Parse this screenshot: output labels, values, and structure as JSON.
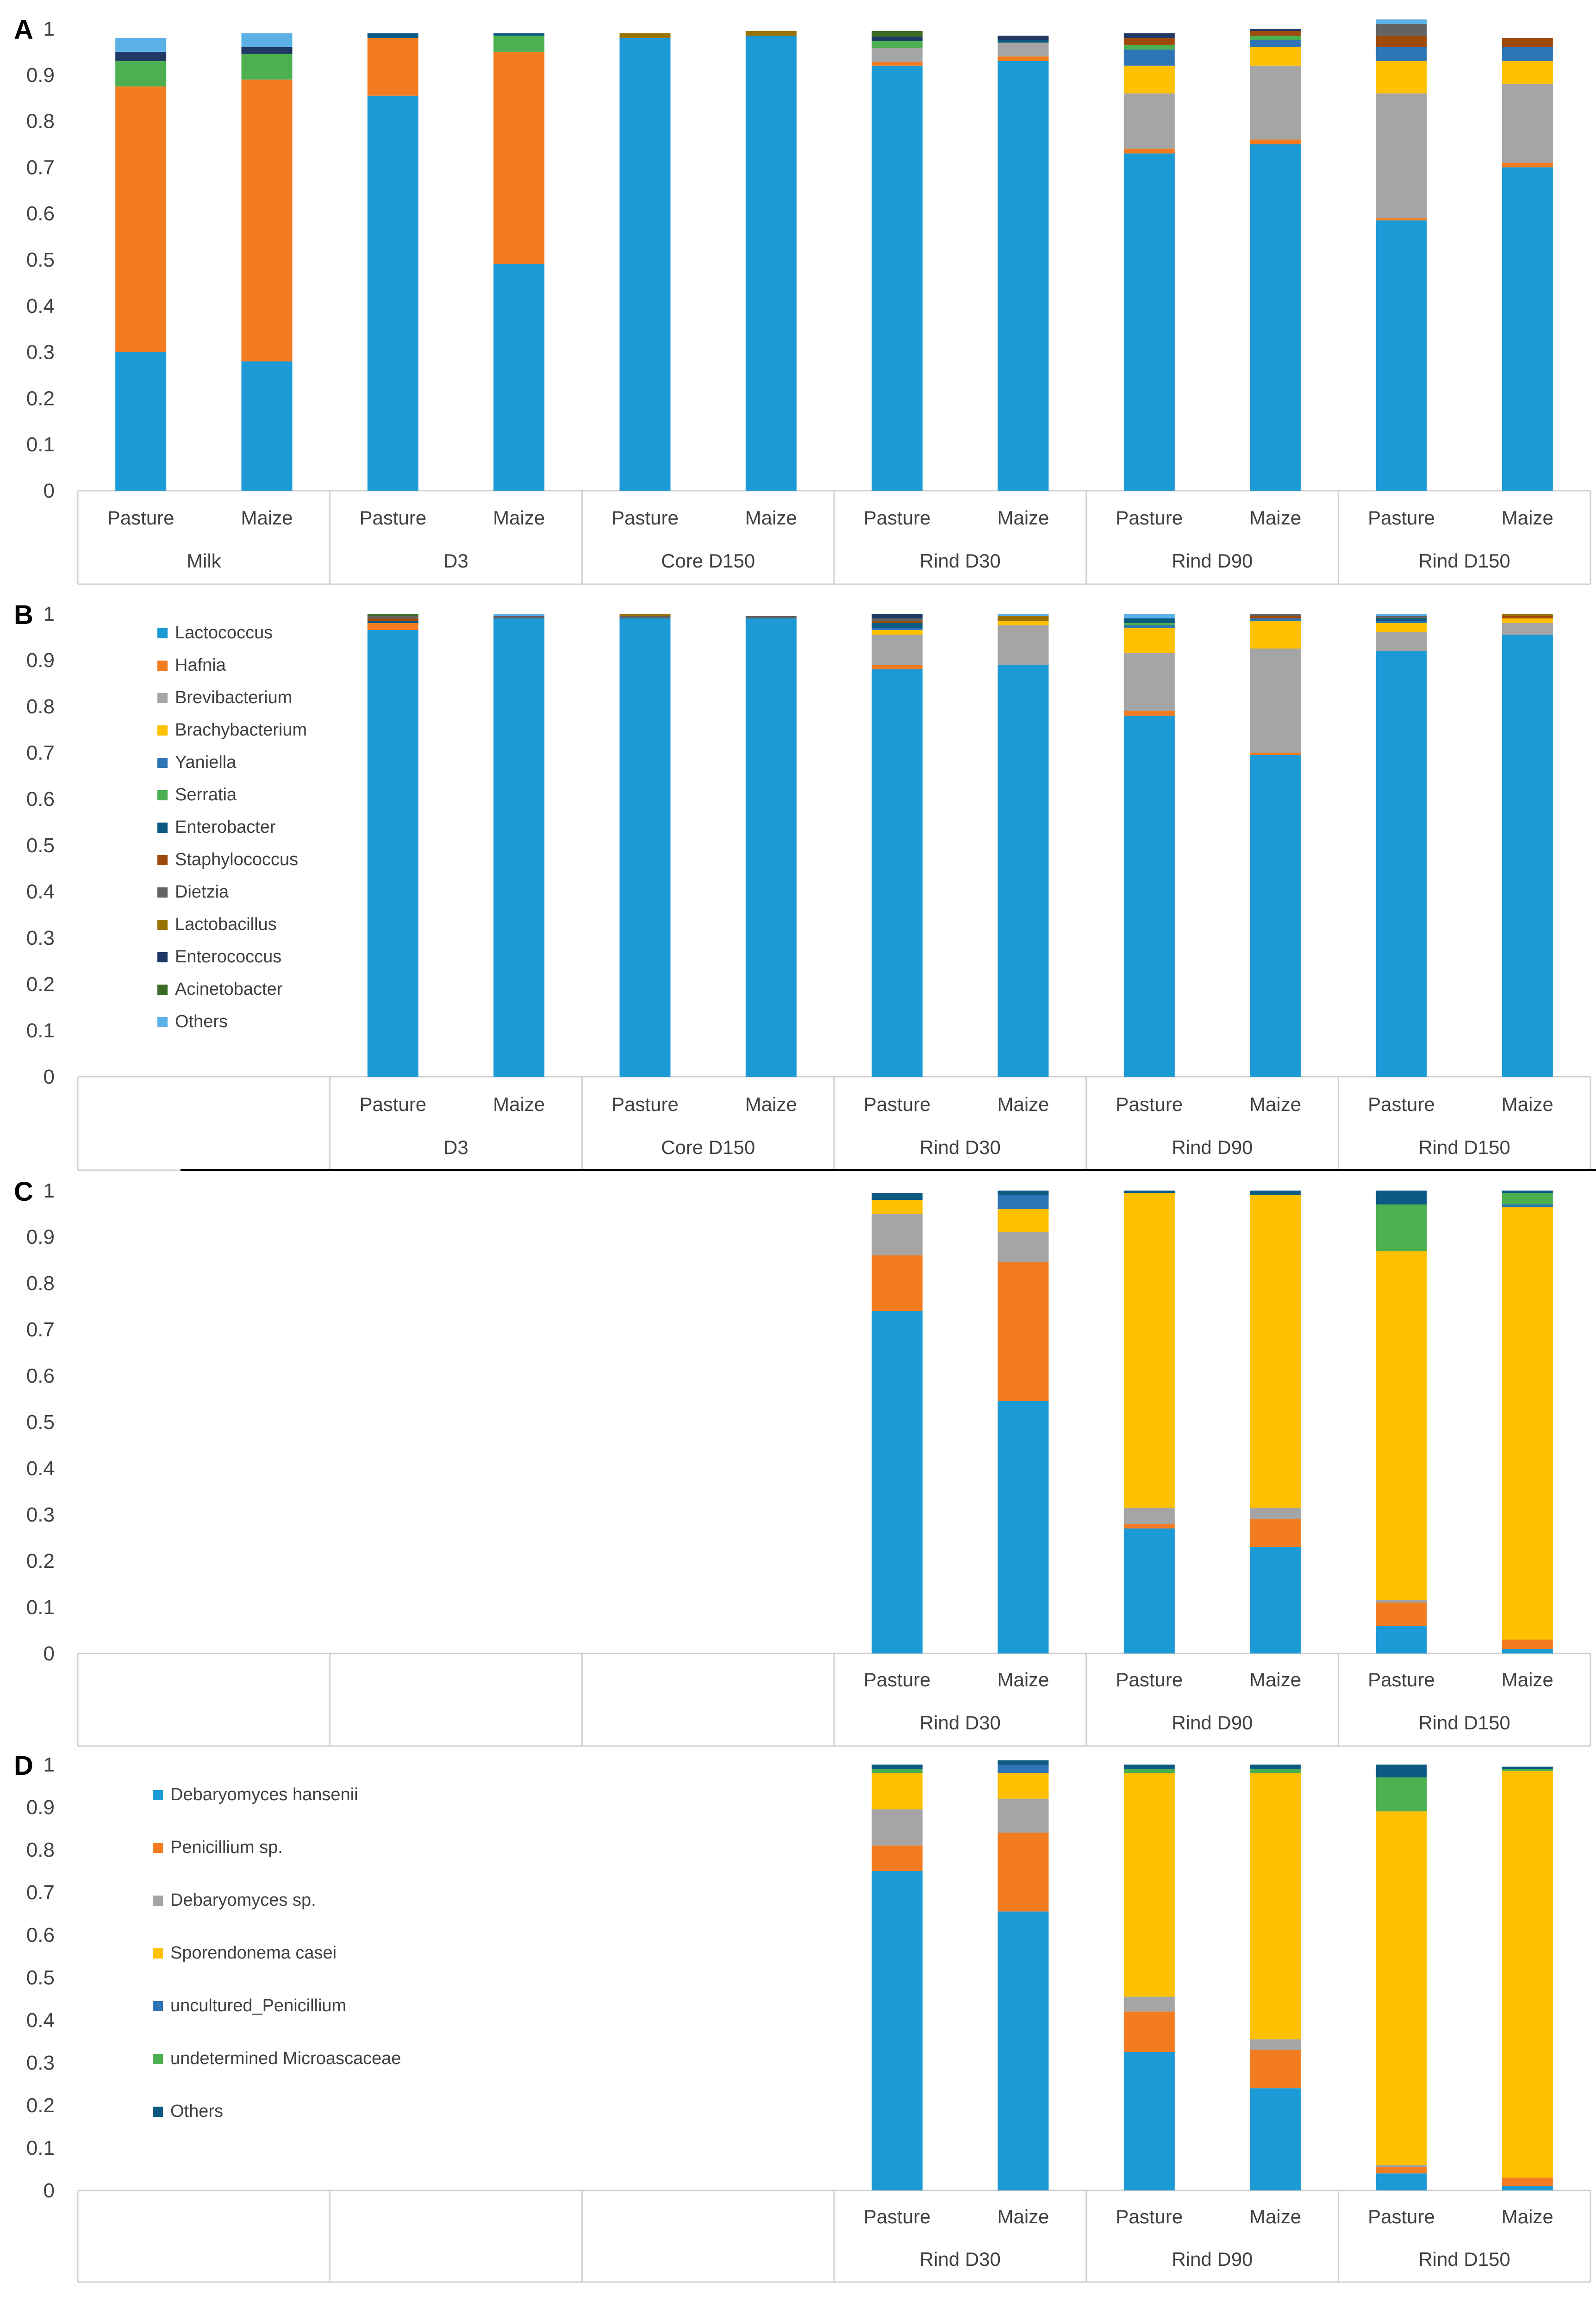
{
  "figure": {
    "panel_letters": [
      "A",
      "B",
      "C",
      "D"
    ]
  },
  "chart_data": [
    {
      "type": "bar",
      "stacked": true,
      "panel": "A",
      "title": "",
      "xlabel": "",
      "ylabel": "",
      "ylim": [
        0,
        1
      ],
      "yticks": [
        "0",
        "0.1",
        "0.2",
        "0.3",
        "0.4",
        "0.5",
        "0.6",
        "0.7",
        "0.8",
        "0.9",
        "1"
      ],
      "groups": [
        {
          "label": "Milk",
          "categories": [
            "Pasture",
            "Maize"
          ]
        },
        {
          "label": "D3",
          "categories": [
            "Pasture",
            "Maize"
          ]
        },
        {
          "label": "Core D150",
          "categories": [
            "Pasture",
            "Maize"
          ]
        },
        {
          "label": "Rind D30",
          "categories": [
            "Pasture",
            "Maize"
          ]
        },
        {
          "label": "Rind D90",
          "categories": [
            "Pasture",
            "Maize"
          ]
        },
        {
          "label": "Rind D150",
          "categories": [
            "Pasture",
            "Maize"
          ]
        }
      ],
      "series": [
        {
          "name": "Lactococcus",
          "color": "#1b9ad6",
          "values": [
            0.3,
            0.28,
            0.855,
            0.49,
            0.98,
            0.985,
            0.92,
            0.93,
            0.73,
            0.75,
            0.585,
            0.7
          ]
        },
        {
          "name": "Hafnia",
          "color": "#f47c20",
          "values": [
            0.575,
            0.61,
            0.125,
            0.46,
            0.0,
            0.0,
            0.008,
            0.01,
            0.01,
            0.01,
            0.005,
            0.01
          ]
        },
        {
          "name": "Brevibacterium",
          "color": "#a5a5a5",
          "values": [
            0.0,
            0.0,
            0.0,
            0.0,
            0.0,
            0.0,
            0.03,
            0.03,
            0.12,
            0.16,
            0.27,
            0.17
          ]
        },
        {
          "name": "Brachybacterium",
          "color": "#ffc000",
          "values": [
            0.0,
            0.0,
            0.0,
            0.0,
            0.0,
            0.0,
            0.0,
            0.0,
            0.06,
            0.04,
            0.07,
            0.05
          ]
        },
        {
          "name": "Yaniella",
          "color": "#2e75b6",
          "values": [
            0.0,
            0.0,
            0.0,
            0.0,
            0.0,
            0.0,
            0.0,
            0.0,
            0.035,
            0.015,
            0.03,
            0.03
          ]
        },
        {
          "name": "Serratia",
          "color": "#4caf50",
          "values": [
            0.055,
            0.055,
            0.0,
            0.035,
            0.0,
            0.0,
            0.015,
            0.0,
            0.01,
            0.01,
            0.0,
            0.0
          ]
        },
        {
          "name": "Enterobacter",
          "color": "#0c5a82",
          "values": [
            0.0,
            0.0,
            0.01,
            0.005,
            0.0,
            0.0,
            0.0,
            0.005,
            0.0,
            0.0,
            0.0,
            0.0
          ]
        },
        {
          "name": "Staphylococcus",
          "color": "#9e4a0c",
          "values": [
            0.0,
            0.0,
            0.0,
            0.0,
            0.0,
            0.0,
            0.0,
            0.0,
            0.015,
            0.01,
            0.025,
            0.02
          ]
        },
        {
          "name": "Dietzia",
          "color": "#636363",
          "values": [
            0.0,
            0.0,
            0.0,
            0.0,
            0.0,
            0.0,
            0.0,
            0.0,
            0.0,
            0.0,
            0.025,
            0.0
          ]
        },
        {
          "name": "Lactobacillus",
          "color": "#997300",
          "values": [
            0.0,
            0.0,
            0.0,
            0.0,
            0.01,
            0.01,
            0.0,
            0.0,
            0.0,
            0.0,
            0.0,
            0.0
          ]
        },
        {
          "name": "Enterococcus",
          "color": "#1f3864",
          "values": [
            0.02,
            0.015,
            0.0,
            0.0,
            0.0,
            0.0,
            0.01,
            0.01,
            0.01,
            0.005,
            0.0,
            0.0
          ]
        },
        {
          "name": "Acinetobacter",
          "color": "#3b6b27",
          "values": [
            0.0,
            0.0,
            0.0,
            0.0,
            0.0,
            0.0,
            0.012,
            0.0,
            0.0,
            0.0,
            0.0,
            0.0
          ]
        },
        {
          "name": "Others",
          "color": "#5bb1e6",
          "values": [
            0.03,
            0.03,
            0.0,
            0.0,
            0.0,
            0.0,
            0.0,
            0.0,
            0.0,
            0.0,
            0.01,
            0.0
          ]
        }
      ]
    },
    {
      "type": "bar",
      "stacked": true,
      "panel": "B",
      "title": "",
      "xlabel": "",
      "ylabel": "",
      "ylim": [
        0,
        1
      ],
      "yticks": [
        "0",
        "0.1",
        "0.2",
        "0.3",
        "0.4",
        "0.5",
        "0.6",
        "0.7",
        "0.8",
        "0.9",
        "1"
      ],
      "groups": [
        {
          "label": "",
          "categories": [
            "",
            ""
          ]
        },
        {
          "label": "D3",
          "categories": [
            "Pasture",
            "Maize"
          ]
        },
        {
          "label": "Core D150",
          "categories": [
            "Pasture",
            "Maize"
          ]
        },
        {
          "label": "Rind D30",
          "categories": [
            "Pasture",
            "Maize"
          ]
        },
        {
          "label": "Rind D90",
          "categories": [
            "Pasture",
            "Maize"
          ]
        },
        {
          "label": "Rind D150",
          "categories": [
            "Pasture",
            "Maize"
          ]
        }
      ],
      "legend": {
        "location": "upper-left"
      },
      "series": [
        {
          "name": "Lactococcus",
          "color": "#1b9ad6",
          "values": [
            0,
            0,
            0.965,
            0.99,
            0.99,
            0.99,
            0.88,
            0.89,
            0.78,
            0.695,
            0.92,
            0.955
          ]
        },
        {
          "name": "Hafnia",
          "color": "#f47c20",
          "values": [
            0,
            0,
            0.015,
            0.0,
            0.0,
            0.0,
            0.01,
            0.0,
            0.01,
            0.005,
            0.0,
            0.0
          ]
        },
        {
          "name": "Brevibacterium",
          "color": "#a5a5a5",
          "values": [
            0,
            0,
            0.0,
            0.0,
            0.0,
            0.0,
            0.065,
            0.085,
            0.125,
            0.225,
            0.04,
            0.025
          ]
        },
        {
          "name": "Brachybacterium",
          "color": "#ffc000",
          "values": [
            0,
            0,
            0.0,
            0.0,
            0.0,
            0.0,
            0.01,
            0.01,
            0.055,
            0.06,
            0.02,
            0.01
          ]
        },
        {
          "name": "Yaniella",
          "color": "#2e75b6",
          "values": [
            0,
            0,
            0.0,
            0.0,
            0.0,
            0.0,
            0.005,
            0.0,
            0.005,
            0.005,
            0.005,
            0.0
          ]
        },
        {
          "name": "Serratia",
          "color": "#4caf50",
          "values": [
            0,
            0,
            0.0,
            0.0,
            0.0,
            0.0,
            0.0,
            0.0,
            0.005,
            0.0,
            0.0,
            0.0
          ]
        },
        {
          "name": "Enterobacter",
          "color": "#0c5a82",
          "values": [
            0,
            0,
            0.005,
            0.0,
            0.0,
            0.0,
            0.01,
            0.0,
            0.01,
            0.0,
            0.005,
            0.0
          ]
        },
        {
          "name": "Staphylococcus",
          "color": "#9e4a0c",
          "values": [
            0,
            0,
            0.005,
            0.0,
            0.0,
            0.0,
            0.005,
            0.0,
            0.0,
            0.005,
            0.0,
            0.005
          ]
        },
        {
          "name": "Dietzia",
          "color": "#636363",
          "values": [
            0,
            0,
            0.005,
            0.005,
            0.005,
            0.005,
            0.005,
            0.0,
            0.0,
            0.005,
            0.005,
            0.0
          ]
        },
        {
          "name": "Lactobacillus",
          "color": "#997300",
          "values": [
            0,
            0,
            0.0,
            0.0,
            0.005,
            0.0,
            0.0,
            0.01,
            0.0,
            0.0,
            0.0,
            0.005
          ]
        },
        {
          "name": "Enterococcus",
          "color": "#1f3864",
          "values": [
            0,
            0,
            0.0,
            0.0,
            0.0,
            0.0,
            0.01,
            0.0,
            0.0,
            0.0,
            0.0,
            0.0
          ]
        },
        {
          "name": "Acinetobacter",
          "color": "#3b6b27",
          "values": [
            0,
            0,
            0.005,
            0.0,
            0.0,
            0.0,
            0.0,
            0.0,
            0.0,
            0.0,
            0.0,
            0.0
          ]
        },
        {
          "name": "Others",
          "color": "#5bb1e6",
          "values": [
            0,
            0,
            0.0,
            0.005,
            0.0,
            0.0,
            0.0,
            0.005,
            0.01,
            0.0,
            0.005,
            0.0
          ]
        }
      ]
    },
    {
      "type": "bar",
      "stacked": true,
      "panel": "C",
      "title": "",
      "xlabel": "",
      "ylabel": "",
      "ylim": [
        0,
        1
      ],
      "yticks": [
        "0",
        "0.1",
        "0.2",
        "0.3",
        "0.4",
        "0.5",
        "0.6",
        "0.7",
        "0.8",
        "0.9",
        "1"
      ],
      "groups": [
        {
          "label": "",
          "categories": [
            "",
            ""
          ]
        },
        {
          "label": "",
          "categories": [
            "",
            ""
          ]
        },
        {
          "label": "",
          "categories": [
            "",
            ""
          ]
        },
        {
          "label": "Rind D30",
          "categories": [
            "Pasture",
            "Maize"
          ]
        },
        {
          "label": "Rind D90",
          "categories": [
            "Pasture",
            "Maize"
          ]
        },
        {
          "label": "Rind D150",
          "categories": [
            "Pasture",
            "Maize"
          ]
        }
      ],
      "series": [
        {
          "name": "Debaryomyces hansenii",
          "color": "#1b9ad6",
          "values": [
            0,
            0,
            0,
            0,
            0,
            0,
            0.74,
            0.545,
            0.27,
            0.23,
            0.06,
            0.01
          ]
        },
        {
          "name": "Penicillium sp.",
          "color": "#f47c20",
          "values": [
            0,
            0,
            0,
            0,
            0,
            0,
            0.12,
            0.3,
            0.01,
            0.06,
            0.05,
            0.02
          ]
        },
        {
          "name": "Debaryomyces sp.",
          "color": "#a5a5a5",
          "values": [
            0,
            0,
            0,
            0,
            0,
            0,
            0.09,
            0.065,
            0.035,
            0.025,
            0.005,
            0.0
          ]
        },
        {
          "name": "Sporendonema casei",
          "color": "#ffc000",
          "values": [
            0,
            0,
            0,
            0,
            0,
            0,
            0.03,
            0.05,
            0.68,
            0.675,
            0.755,
            0.935
          ]
        },
        {
          "name": "uncultured_Penicillium",
          "color": "#2e75b6",
          "values": [
            0,
            0,
            0,
            0,
            0,
            0,
            0.0,
            0.03,
            0.0,
            0.0,
            0.0,
            0.005
          ]
        },
        {
          "name": "undetermined Microascaceae",
          "color": "#4caf50",
          "values": [
            0,
            0,
            0,
            0,
            0,
            0,
            0.0,
            0.0,
            0.0,
            0.0,
            0.1,
            0.025
          ]
        },
        {
          "name": "Others",
          "color": "#0c5a82",
          "values": [
            0,
            0,
            0,
            0,
            0,
            0,
            0.015,
            0.01,
            0.005,
            0.01,
            0.03,
            0.005
          ]
        }
      ]
    },
    {
      "type": "bar",
      "stacked": true,
      "panel": "D",
      "title": "",
      "xlabel": "",
      "ylabel": "",
      "ylim": [
        0,
        1
      ],
      "yticks": [
        "0",
        "0.1",
        "0.2",
        "0.3",
        "0.4",
        "0.5",
        "0.6",
        "0.7",
        "0.8",
        "0.9",
        "1"
      ],
      "groups": [
        {
          "label": "",
          "categories": [
            "",
            ""
          ]
        },
        {
          "label": "",
          "categories": [
            "",
            ""
          ]
        },
        {
          "label": "",
          "categories": [
            "",
            ""
          ]
        },
        {
          "label": "Rind D30",
          "categories": [
            "Pasture",
            "Maize"
          ]
        },
        {
          "label": "Rind D90",
          "categories": [
            "Pasture",
            "Maize"
          ]
        },
        {
          "label": "Rind D150",
          "categories": [
            "Pasture",
            "Maize"
          ]
        }
      ],
      "legend": {
        "location": "upper-left"
      },
      "series": [
        {
          "name": "Debaryomyces hansenii",
          "color": "#1b9ad6",
          "values": [
            0,
            0,
            0,
            0,
            0,
            0,
            0.75,
            0.655,
            0.325,
            0.24,
            0.04,
            0.01
          ]
        },
        {
          "name": "Penicillium sp.",
          "color": "#f47c20",
          "values": [
            0,
            0,
            0,
            0,
            0,
            0,
            0.06,
            0.185,
            0.095,
            0.09,
            0.015,
            0.02
          ]
        },
        {
          "name": "Debaryomyces sp.",
          "color": "#a5a5a5",
          "values": [
            0,
            0,
            0,
            0,
            0,
            0,
            0.085,
            0.08,
            0.035,
            0.025,
            0.005,
            0.0
          ]
        },
        {
          "name": "Sporendonema casei",
          "color": "#ffc000",
          "values": [
            0,
            0,
            0,
            0,
            0,
            0,
            0.085,
            0.06,
            0.525,
            0.625,
            0.83,
            0.955
          ]
        },
        {
          "name": "uncultured_Penicillium",
          "color": "#2e75b6",
          "values": [
            0,
            0,
            0,
            0,
            0,
            0,
            0.0,
            0.02,
            0.0,
            0.0,
            0.0,
            0.0
          ]
        },
        {
          "name": "undetermined Microascaceae",
          "color": "#4caf50",
          "values": [
            0,
            0,
            0,
            0,
            0,
            0,
            0.01,
            0.0,
            0.01,
            0.01,
            0.08,
            0.005
          ]
        },
        {
          "name": "Others",
          "color": "#0c5a82",
          "values": [
            0,
            0,
            0,
            0,
            0,
            0,
            0.01,
            0.01,
            0.01,
            0.01,
            0.03,
            0.005
          ]
        }
      ]
    }
  ]
}
